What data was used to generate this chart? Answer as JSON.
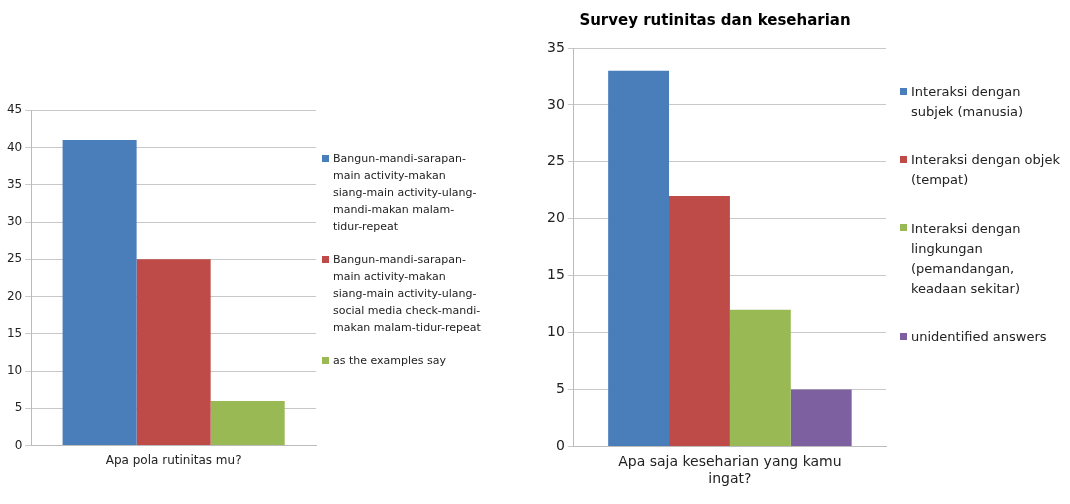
{
  "chart_data": [
    {
      "type": "bar",
      "categories": [
        "Apa pola rutinitas mu?"
      ],
      "ylim": [
        0,
        45
      ],
      "yticks": [
        0,
        5,
        10,
        15,
        20,
        25,
        30,
        35,
        40,
        45
      ],
      "grid": "y",
      "legend": "right",
      "series": [
        {
          "name": "Bangun-mandi-sarapan-main activity-makan siang-main activity-ulang-mandi-makan malam-tidur-repeat",
          "color": "#4a7ebb",
          "values": [
            41
          ]
        },
        {
          "name": "Bangun-mandi-sarapan-main activity-makan siang-main activity-ulang-social media check-mandi-makan malam-tidur-repeat",
          "color": "#be4b48",
          "values": [
            25
          ]
        },
        {
          "name": "as the examples say",
          "color": "#98b954",
          "values": [
            6
          ]
        }
      ]
    },
    {
      "type": "bar",
      "title": "Survey rutinitas dan keseharian",
      "categories": [
        "Apa saja keseharian yang kamu ingat?"
      ],
      "ylim": [
        0,
        35
      ],
      "yticks": [
        0,
        5,
        10,
        15,
        20,
        25,
        30,
        35
      ],
      "grid": "y",
      "legend": "right",
      "series": [
        {
          "name": "Interaksi dengan subjek (manusia)",
          "color": "#4a7ebb",
          "values": [
            33
          ]
        },
        {
          "name": "Interaksi dengan objek (tempat)",
          "color": "#be4b48",
          "values": [
            22
          ]
        },
        {
          "name": "Interaksi dengan lingkungan (pemandangan, keadaan sekitar)",
          "color": "#98b954",
          "values": [
            12
          ]
        },
        {
          "name": "unidentified answers",
          "color": "#7d60a0",
          "values": [
            5
          ]
        }
      ]
    }
  ]
}
